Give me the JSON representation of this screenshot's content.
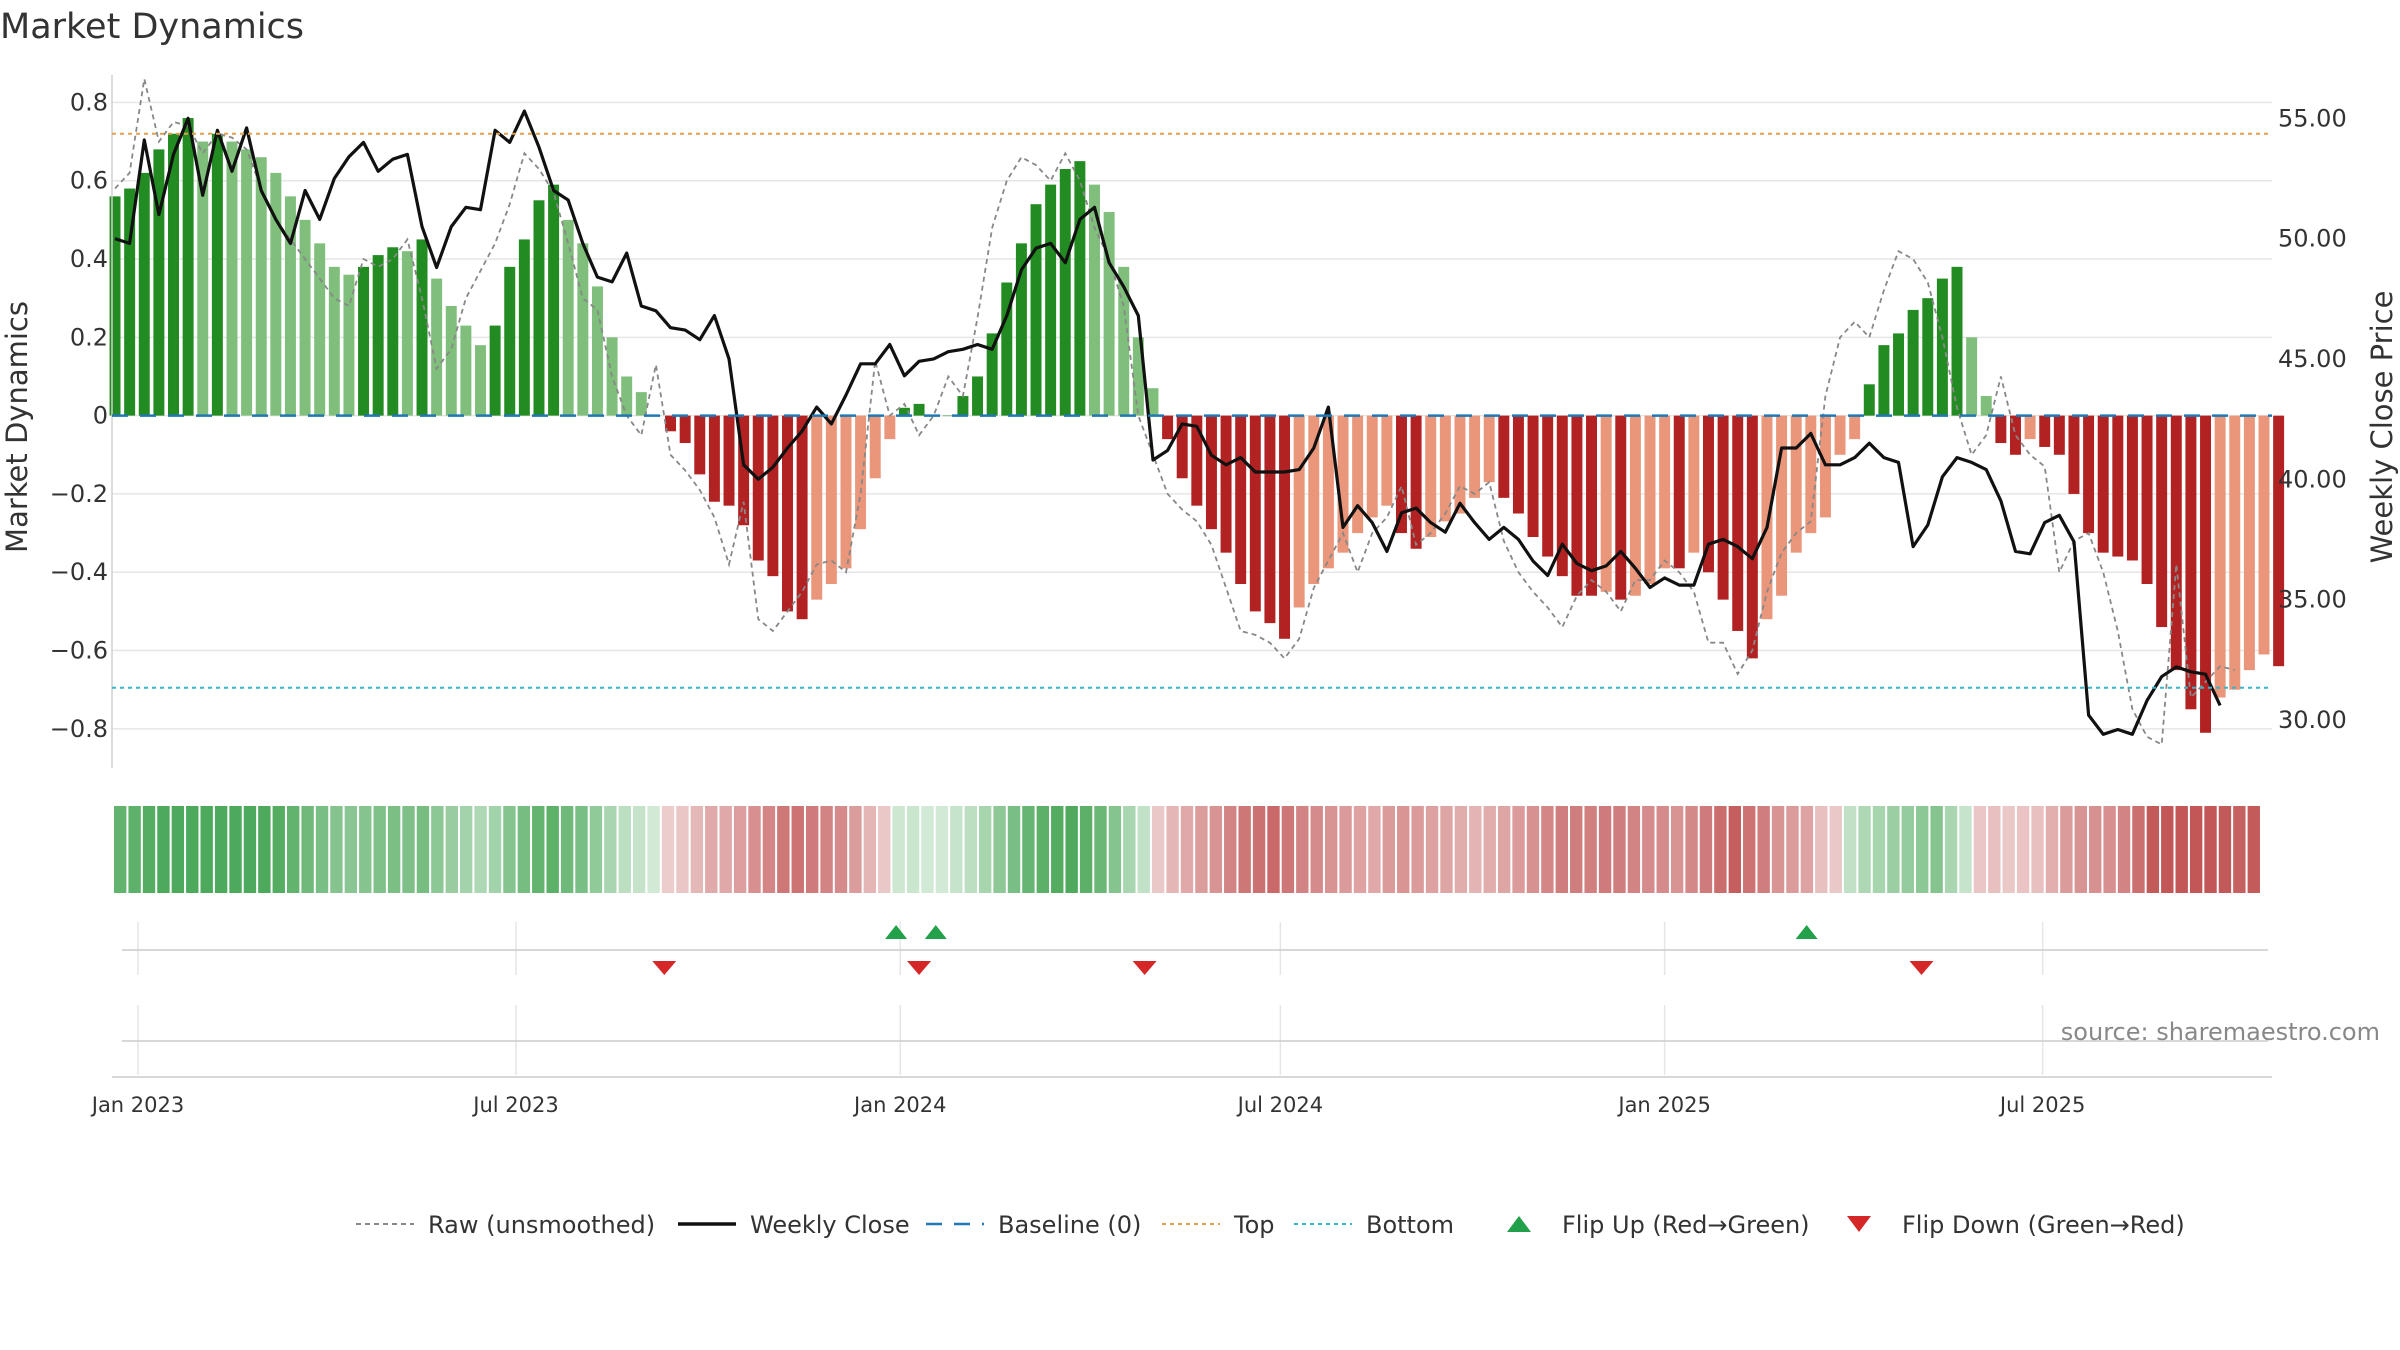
{
  "chart_data": {
    "type": "bar",
    "title": "Market Dynamics",
    "ylabel_left": "Market Dynamics",
    "ylabel_right": "Weekly Close Price",
    "ylim_left": [
      -0.9,
      0.87
    ],
    "ylim_right": [
      28.0,
      56.8
    ],
    "yticks_left": [
      0.8,
      0.6,
      0.4,
      0.2,
      0,
      -0.2,
      -0.4,
      -0.6,
      -0.8
    ],
    "yticks_left_labels": [
      "0.8",
      "0.6",
      "0.4",
      "0.2",
      "0",
      "−0.2",
      "−0.4",
      "−0.6",
      "−0.8"
    ],
    "yticks_right": [
      55,
      50,
      45,
      40,
      35,
      30
    ],
    "yticks_right_labels": [
      "55.00",
      "50.00",
      "45.00",
      "40.00",
      "35.00",
      "30.00"
    ],
    "x_start": "2023-01-01",
    "x_end": "2025-10-15",
    "x_ticks": [
      {
        "date": "2023-01-01",
        "label": "Jan 2023"
      },
      {
        "date": "2023-07-01",
        "label": "Jul 2023"
      },
      {
        "date": "2024-01-01",
        "label": "Jan 2024"
      },
      {
        "date": "2024-07-01",
        "label": "Jul 2024"
      },
      {
        "date": "2025-01-01",
        "label": "Jan 2025"
      },
      {
        "date": "2025-07-01",
        "label": "Jul 2025"
      }
    ],
    "top_level": 0.72,
    "bottom_level": -0.695,
    "baseline": 0,
    "series": [
      {
        "name": "Market Dynamics (smoothed)",
        "first_week": "2022-12-21",
        "step_days": 7,
        "values": [
          0.56,
          0.58,
          0.62,
          0.68,
          0.72,
          0.76,
          0.7,
          0.72,
          0.7,
          0.68,
          0.66,
          0.62,
          0.56,
          0.5,
          0.44,
          0.38,
          0.36,
          0.38,
          0.41,
          0.43,
          0.42,
          0.45,
          0.35,
          0.28,
          0.23,
          0.18,
          0.23,
          0.38,
          0.45,
          0.55,
          0.59,
          0.5,
          0.44,
          0.33,
          0.2,
          0.1,
          0.06,
          0.0,
          -0.04,
          -0.07,
          -0.15,
          -0.22,
          -0.23,
          -0.28,
          -0.37,
          -0.41,
          -0.5,
          -0.52,
          -0.47,
          -0.43,
          -0.39,
          -0.29,
          -0.16,
          -0.06,
          0.02,
          0.03,
          0.0,
          0.0,
          0.05,
          0.1,
          0.21,
          0.34,
          0.44,
          0.54,
          0.59,
          0.63,
          0.65,
          0.59,
          0.52,
          0.38,
          0.2,
          0.07,
          -0.06,
          -0.16,
          -0.23,
          -0.29,
          -0.35,
          -0.43,
          -0.5,
          -0.53,
          -0.57,
          -0.49,
          -0.43,
          -0.39,
          -0.35,
          -0.3,
          -0.26,
          -0.23,
          -0.3,
          -0.34,
          -0.31,
          -0.27,
          -0.25,
          -0.21,
          -0.17,
          -0.21,
          -0.25,
          -0.31,
          -0.36,
          -0.41,
          -0.46,
          -0.46,
          -0.45,
          -0.47,
          -0.46,
          -0.43,
          -0.39,
          -0.39,
          -0.35,
          -0.4,
          -0.47,
          -0.55,
          -0.62,
          -0.52,
          -0.46,
          -0.35,
          -0.3,
          -0.26,
          -0.1,
          -0.06,
          0.08,
          0.18,
          0.21,
          0.27,
          0.3,
          0.35,
          0.38,
          0.2,
          0.05,
          -0.07,
          -0.1,
          -0.06,
          -0.08,
          -0.1,
          -0.2,
          -0.3,
          -0.35,
          -0.36,
          -0.37,
          -0.43,
          -0.54,
          -0.65,
          -0.75,
          -0.81,
          -0.72,
          -0.7,
          -0.65,
          -0.61,
          -0.64
        ]
      },
      {
        "name": "Raw (unsmoothed)",
        "first_week": "2022-12-21",
        "step_days": 7,
        "values": [
          0.58,
          0.62,
          0.86,
          0.7,
          0.75,
          0.74,
          0.67,
          0.72,
          0.71,
          0.68,
          0.58,
          0.5,
          0.45,
          0.4,
          0.35,
          0.3,
          0.28,
          0.4,
          0.38,
          0.4,
          0.45,
          0.3,
          0.12,
          0.17,
          0.3,
          0.37,
          0.44,
          0.54,
          0.67,
          0.63,
          0.57,
          0.44,
          0.3,
          0.27,
          0.1,
          0.0,
          -0.05,
          0.13,
          -0.1,
          -0.14,
          -0.19,
          -0.26,
          -0.38,
          -0.22,
          -0.52,
          -0.55,
          -0.5,
          -0.45,
          -0.38,
          -0.37,
          -0.4,
          -0.2,
          0.14,
          0.0,
          0.03,
          -0.05,
          0.0,
          0.1,
          0.05,
          0.25,
          0.48,
          0.6,
          0.66,
          0.64,
          0.6,
          0.67,
          0.6,
          0.48,
          0.4,
          0.28,
          0.0,
          -0.1,
          -0.2,
          -0.24,
          -0.27,
          -0.33,
          -0.44,
          -0.55,
          -0.56,
          -0.58,
          -0.62,
          -0.57,
          -0.44,
          -0.37,
          -0.3,
          -0.4,
          -0.3,
          -0.26,
          -0.18,
          -0.33,
          -0.3,
          -0.25,
          -0.18,
          -0.2,
          -0.17,
          -0.32,
          -0.4,
          -0.45,
          -0.49,
          -0.54,
          -0.46,
          -0.42,
          -0.45,
          -0.5,
          -0.42,
          -0.42,
          -0.37,
          -0.4,
          -0.45,
          -0.58,
          -0.58,
          -0.66,
          -0.6,
          -0.45,
          -0.35,
          -0.3,
          -0.27,
          0.05,
          0.2,
          0.24,
          0.2,
          0.32,
          0.42,
          0.4,
          0.34,
          0.2,
          0.02,
          -0.1,
          -0.05,
          0.1,
          -0.05,
          -0.1,
          -0.13,
          -0.4,
          -0.32,
          -0.3,
          -0.4,
          -0.55,
          -0.75,
          -0.82,
          -0.84,
          -0.38,
          -0.72,
          -0.68,
          -0.64,
          -0.65
        ]
      },
      {
        "name": "Weekly Close",
        "first_week": "2022-12-21",
        "step_days": 7,
        "values": [
          50.0,
          49.8,
          54.1,
          51.0,
          53.5,
          55.0,
          51.8,
          54.5,
          52.8,
          54.6,
          52.0,
          50.8,
          49.8,
          52.0,
          50.8,
          52.5,
          53.4,
          54.0,
          52.8,
          53.3,
          53.5,
          50.5,
          48.8,
          50.5,
          51.3,
          51.2,
          54.5,
          54.0,
          55.3,
          53.8,
          52.0,
          51.6,
          49.8,
          48.4,
          48.2,
          49.4,
          47.2,
          47.0,
          46.3,
          46.2,
          45.8,
          46.8,
          45.0,
          40.6,
          40.0,
          40.5,
          41.3,
          42.0,
          43.0,
          42.3,
          43.5,
          44.8,
          44.8,
          45.6,
          44.3,
          44.9,
          45.0,
          45.3,
          45.4,
          45.6,
          45.4,
          46.8,
          48.7,
          49.6,
          49.8,
          49.0,
          50.8,
          51.3,
          49.0,
          48.0,
          46.8,
          40.8,
          41.2,
          42.3,
          42.2,
          41.0,
          40.6,
          40.9,
          40.3,
          40.3,
          40.3,
          40.4,
          41.3,
          43.0,
          38.0,
          38.9,
          38.2,
          37.0,
          38.6,
          38.8,
          38.2,
          37.8,
          39.0,
          38.2,
          37.5,
          38.0,
          37.5,
          36.6,
          36.0,
          37.3,
          36.5,
          36.2,
          36.4,
          37.0,
          36.3,
          35.5,
          35.9,
          35.6,
          35.6,
          37.3,
          37.5,
          37.2,
          36.7,
          38.0,
          41.3,
          41.3,
          41.9,
          40.6,
          40.6,
          40.9,
          41.5,
          40.9,
          40.7,
          37.2,
          38.1,
          40.1,
          40.9,
          40.7,
          40.4,
          39.1,
          37.0,
          36.9,
          38.2,
          38.5,
          37.4,
          30.2,
          29.4,
          29.6,
          29.4,
          30.8,
          31.8,
          32.2,
          32.0,
          31.9,
          30.6
        ]
      }
    ],
    "flip_up_dates": [
      "2023-12-30",
      "2024-01-18",
      "2025-03-10"
    ],
    "flip_down_dates": [
      "2023-09-10",
      "2024-01-10",
      "2024-04-27",
      "2025-05-04"
    ],
    "colors": {
      "pos_strong": "#228b22",
      "pos_weak": "#7fbf7b",
      "neg_strong": "#b22222",
      "neg_weak": "#e9967a",
      "raw_line": "#888888",
      "close_line": "#111111",
      "baseline": "#1f77b4",
      "top": "#e0a050",
      "bottom": "#36b4c8",
      "flip_up": "#22a04a",
      "flip_down": "#d62728",
      "heat_pos": "#2e9a3e",
      "heat_neg": "#b83a3a"
    },
    "legend": [
      {
        "key": "raw",
        "label": "Raw (unsmoothed)"
      },
      {
        "key": "close",
        "label": "Weekly Close"
      },
      {
        "key": "baseline",
        "label": "Baseline (0)"
      },
      {
        "key": "top",
        "label": "Top"
      },
      {
        "key": "bottom",
        "label": "Bottom"
      },
      {
        "key": "flip_up",
        "label": "Flip Up (Red→Green)"
      },
      {
        "key": "flip_down",
        "label": "Flip Down (Green→Red)"
      }
    ],
    "source": "source: sharemaestro.com"
  }
}
